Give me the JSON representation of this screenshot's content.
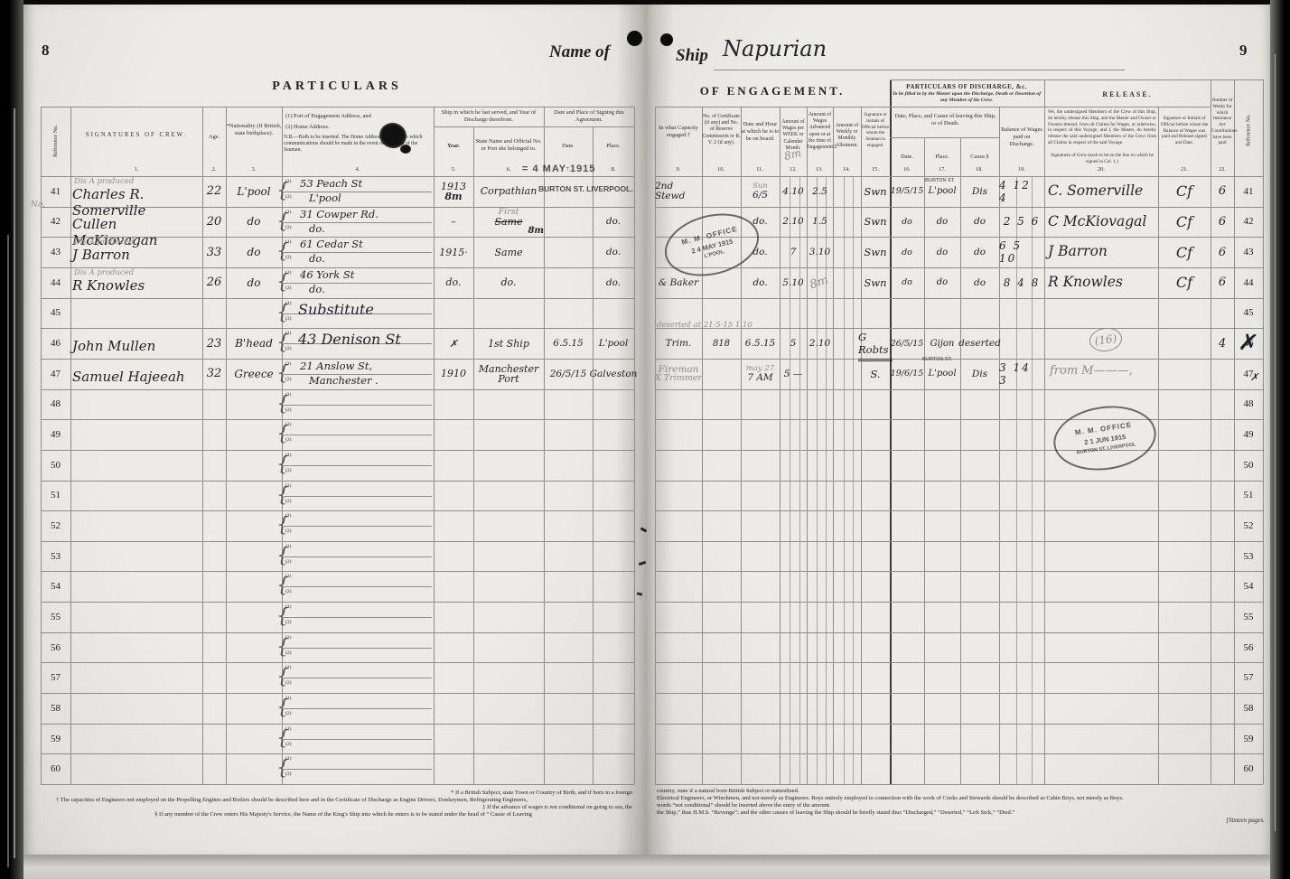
{
  "header": {
    "page_left_no": "8",
    "page_right_no": "9",
    "name_of": "Name of",
    "ship_label": "Ship",
    "ship_name": "Napurian",
    "left_title": "PARTICULARS",
    "right_title": "OF ENGAGEMENT."
  },
  "cols": {
    "refno": "Reference No.",
    "refno2": "Reference No.",
    "c1": "SIGNATURES OF CREW.",
    "n1": "1.",
    "c2": "Age.",
    "n2": "2.",
    "c3": "*Nationality (If British, state birthplace).",
    "n3": "3.",
    "c4a": "(1) Port of Engagement Address, and",
    "c4b": "(2) Home Address.",
    "c4c": "N.B.—Both to be inserted.  The Home Address is the one to which communications should be made in the event of the death of the Seaman.",
    "n4": "4.",
    "g56": "Ship in which he last served, and Year of Discharge therefrom.",
    "c5": "Year.",
    "n5": "5.",
    "c6": "State Name and Official No. or Port she belonged to.",
    "n6": "6.",
    "g78": "Date and Place of Signing this Agreement.",
    "c7": "Date.",
    "n7": "7.",
    "c8": "Place.",
    "n8": "8.",
    "c9": "In what Capacity engaged.†",
    "n9": "9.",
    "c10": "No. of Certificate (if any) and No. of Reserve Commission or R. V. 2 (if any).",
    "n10": "10.",
    "c11": "Date and Hour at which he is to be on board.",
    "n11": "11.",
    "c12": "Amount of Wages per WEEK or Calendar Month.",
    "n12": "12.",
    "c13": "Amount of Wages Advanced upon or at the time of Engagement.‡",
    "n13": "13.",
    "c14": "Amount of Weekly or Monthly Allotment.",
    "n14": "14.",
    "c15": "Signature or Initials of Official before whom the Seaman is engaged.",
    "n15": "15.",
    "g_discharge_title": "PARTICULARS OF DISCHARGE, &c.",
    "g_discharge_sub": "To be filled in by the Master upon the Discharge, Death or Desertion of any Member of his Crew.",
    "g_leaving": "Date, Place, and Cause of leaving this Ship, or of Death.",
    "c16": "Date.",
    "n16": "16.",
    "c17": "Place.",
    "n17": "17.",
    "c18": "Cause.§",
    "n18": "18.",
    "c19": "Balance of Wages paid on Discharge.",
    "n19": "19.",
    "g_release": "RELEASE.",
    "c20": "We, the undersigned Members of the Crew of this Ship, do hereby release this Ship, and the Master and Owner or Owners thereof, from all Claims for Wages, or otherwise, in respect of this Voyage, and I, the Master, do hereby release the said undersigned Members of the Crew from all Claims in respect of the said Voyage.",
    "c20b": "Signatures of Crew (each to be on the line on which he signed in Col. 1.)",
    "n20": "20.",
    "c21": "Signature or Initials of Official before whom the Balance of Wages was paid and Release signed and Date.",
    "n21": "21.",
    "c22": "Number of Weeks for which Insurance Act Contributions have been paid",
    "n22": "22."
  },
  "glyphs": {
    "brace": "{",
    "m1": "(1)",
    "m2": "(2)"
  },
  "stamps": {
    "may4": "= 4 MAY 1915",
    "burton_liverpool": "BURTON ST. LIVERPOOL.",
    "burton_small_1": "BURTON ST.",
    "burton_small_2": "BURTON ST.",
    "oval1_top": "M. M. OFFICE",
    "oval1_mid": "2 4 MAY 1915",
    "oval1_bot": "L'POOL",
    "oval2_top": "M. M. OFFICE",
    "oval2_mid": "2 1 JUN 1915",
    "oval2_bot": "BURTON ST. LIVERPOOL"
  },
  "annotations": {
    "no_pencil": "No.",
    "header_scribble": "8m"
  },
  "rows_left": [
    {
      "ref": "41",
      "note": "Dis A produced",
      "name": "Charles R. Somerville",
      "age": "22",
      "nat": "L'pool",
      "addr1": "53 Peach St",
      "addr2": "L'pool",
      "year": "1913",
      "year_sub": "8m",
      "ship": "Corpathian"
    },
    {
      "ref": "42",
      "name": "Cullen McKiovagan",
      "age": "20",
      "nat": "do",
      "addr1": "31 Cowper Rd.",
      "addr2": "do.",
      "year": "–",
      "ship_note": "First",
      "ship": "Same",
      "ship_struck": true,
      "ship_sub": "8m",
      "place": "do."
    },
    {
      "ref": "43",
      "note": "Dis A produced",
      "name": "J Barron",
      "age": "33",
      "nat": "do",
      "addr1": "61 Cedar St",
      "addr2": "do.",
      "year": "1915·",
      "ship": "Same",
      "place": "do."
    },
    {
      "ref": "44",
      "note": "Dis A produced",
      "name": "R Knowles",
      "age": "26",
      "nat": "do",
      "addr1": "46 York St",
      "addr2": "do.",
      "year": "do.",
      "ship": "do.",
      "place": "do."
    },
    {
      "ref": "45",
      "addr_big": "Substitute"
    },
    {
      "ref": "46",
      "name": "John Mullen",
      "age": "23",
      "nat": "B'head",
      "addr_big": "43 Denison St",
      "year": "✗",
      "ship": "1st Ship",
      "date": "6.5.15",
      "place": "L'pool"
    },
    {
      "ref": "47",
      "name": "Samuel Hajeeah",
      "age": "32",
      "nat": "Greece",
      "addr1": "21 Anslow St,",
      "addr2": "Manchester .",
      "year": "1910",
      "ship": "Manchester Port",
      "date": "26/5/15",
      "place": "Galveston"
    },
    {
      "ref": "48"
    },
    {
      "ref": "49"
    },
    {
      "ref": "50"
    },
    {
      "ref": "51"
    },
    {
      "ref": "52"
    },
    {
      "ref": "53"
    },
    {
      "ref": "54"
    },
    {
      "ref": "55"
    },
    {
      "ref": "56"
    },
    {
      "ref": "57"
    },
    {
      "ref": "58"
    },
    {
      "ref": "59"
    },
    {
      "ref": "60"
    }
  ],
  "rows_right": [
    {
      "ref": "41",
      "capacity": "2nd Stewd",
      "hour_note": "Sun",
      "hour": "6/5",
      "wages": "4.10",
      "advance": "2.5",
      "official": "Swn",
      "d_date": "19/5/15",
      "d_place": "L'pool",
      "d_cause": "Dis",
      "balance": "4 12 4",
      "sig": "C. Somerville",
      "off": "Cf",
      "weeks": "6"
    },
    {
      "ref": "42",
      "hour": "do.",
      "wages": "2.10",
      "advance": "1.5",
      "official": "Swn",
      "d_date": "do",
      "d_place": "do",
      "d_cause": "do",
      "balance": "2 5 6",
      "sig": "C McKiovagal",
      "off": "Cf",
      "weeks": "6"
    },
    {
      "ref": "43",
      "hour": "do.",
      "wages": "7",
      "advance": "3.10",
      "official": "Swn",
      "d_date": "do",
      "d_place": "do",
      "d_cause": "do",
      "balance": "6 5 10",
      "sig": "J Barron",
      "off": "Cf",
      "weeks": "6"
    },
    {
      "ref": "44",
      "capacity": "& Baker",
      "hour": "do.",
      "wages": "5.10",
      "advance_scribble": "8m",
      "official": "Swn",
      "d_date": "do",
      "d_place": "do",
      "d_cause": "do",
      "balance": "8 4 8",
      "sig": "R Knowles",
      "off": "Cf",
      "weeks": "6"
    },
    {
      "ref": "45"
    },
    {
      "ref": "46",
      "ref_struck": true,
      "capacity_note": "deserted at 21·5·15 1.10",
      "capacity": "Trim.",
      "cert": "818",
      "hour": "6.5.15",
      "wages": "5",
      "advance": "2.10",
      "official": "G Robts",
      "official_u": true,
      "d_date": "26/5/15",
      "d_place": "Gijon",
      "d_cause": "deserted",
      "sig_circ": "(16)",
      "weeks": "4"
    },
    {
      "ref": "47",
      "ref_mark": "✗",
      "capacity": "Fireman",
      "capacity2": "X Trimmer",
      "hour_note": "may 27",
      "hour": "7 AM",
      "wages": "5 —",
      "official": "S.",
      "d_date": "19/6/15",
      "d_place": "L'pool",
      "d_cause": "Dis",
      "balance": "3 14 3",
      "sig_pencil": "from M———,"
    },
    {
      "ref": "48"
    },
    {
      "ref": "49"
    },
    {
      "ref": "50"
    },
    {
      "ref": "51"
    },
    {
      "ref": "52"
    },
    {
      "ref": "53"
    },
    {
      "ref": "54"
    },
    {
      "ref": "55"
    },
    {
      "ref": "56"
    },
    {
      "ref": "57"
    },
    {
      "ref": "58"
    },
    {
      "ref": "59"
    },
    {
      "ref": "60"
    }
  ],
  "footnotes_left": [
    "* If a British Subject, state Town or Country of Birth, and if born in a foreign",
    "† The capacities of Engineers not employed on the Propelling Engines and Boilers should be described here and in the Certificate of Discharge as Engine Drivers, Donkeymen, Refrigerating Engineers,",
    "‡ If the advance of wages is not conditional on going to sea, the",
    "§ If any member of the Crew enters His Majesty's Service, the Name of the King's Ship into which he enters is to be stated under the head of “ Cause of Leaving"
  ],
  "footnotes_right": [
    "country, state if a natural born British Subject or naturalized.",
    "Electrical Engineers, or Winchmen, and not merely as Engineers.   Boys entirely employed in connection with the work of Cooks and Stewards should be described as Cabin Boys, not merely as Boys.",
    "words “not conditional” should be inserted above the entry of the amount.",
    "the Ship,” thus H.M.S. “Revenge”; and the other causes of leaving the Ship should be briefly stated thus “Discharged,” “Deserted,” “Left Sick,” “Died.”",
    "[Sixteen pages."
  ]
}
